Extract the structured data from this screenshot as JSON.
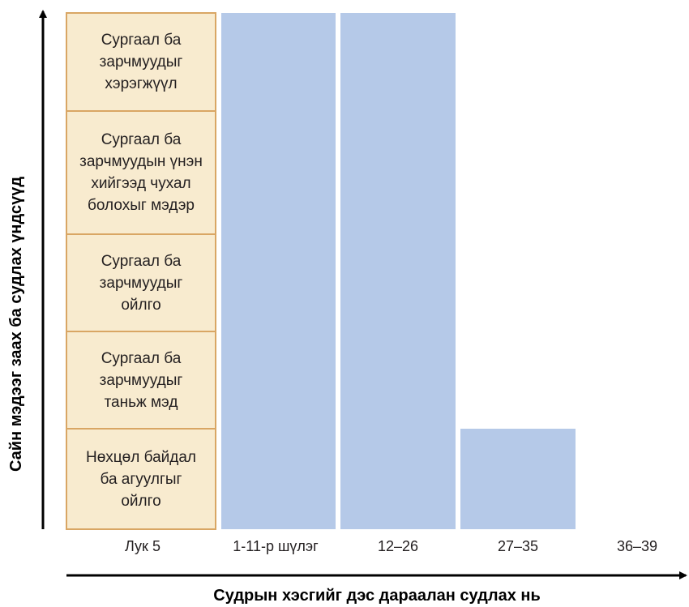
{
  "diagram": {
    "y_axis_title": "Сайн мэдээг заах ба судлах үндсүүд",
    "x_axis_title": "Судрын хэсгийг дэс дараалан судлах нь",
    "levels": [
      {
        "label": "Сургаал ба\nзарчмуудыг\nхэрэгжүүл"
      },
      {
        "label": "Сургаал ба\nзарчмуудын үнэн\nхийгээд чухал\nболохыг мэдэр"
      },
      {
        "label": "Сургаал ба\nзарчмуудыг\nойлго"
      },
      {
        "label": "Сургаал ба\nзарчмуудыг\nтаньж мэд"
      },
      {
        "label": "Нөхцөл байдал\nба агуулгыг\nойлго"
      }
    ],
    "columns": [
      {
        "label": "Лук 5",
        "levels_filled": 5
      },
      {
        "label": "1-11-р шүлэг",
        "levels_filled": 5
      },
      {
        "label": "12–26",
        "levels_filled": 5
      },
      {
        "label": "27–35",
        "levels_filled": 1
      },
      {
        "label": "36–39",
        "levels_filled": 0
      }
    ],
    "colors": {
      "stack_fill": "#f8ebcf",
      "stack_border": "#d9a664",
      "bar_fill": "#b5c9e8",
      "axis": "#000000"
    }
  }
}
